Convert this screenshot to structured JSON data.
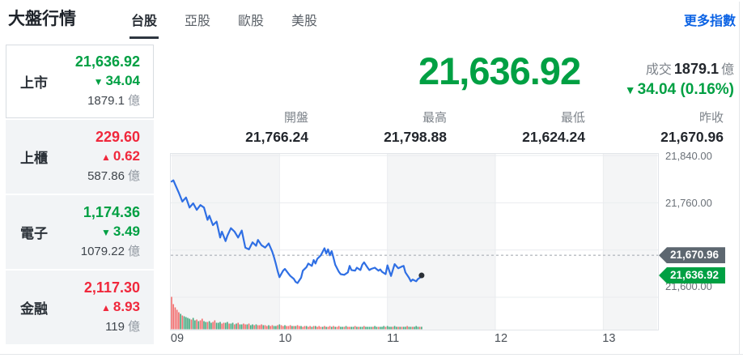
{
  "header": {
    "title": "大盤行情",
    "tabs": [
      {
        "label": "台股",
        "active": true
      },
      {
        "label": "亞股",
        "active": false
      },
      {
        "label": "歐股",
        "active": false
      },
      {
        "label": "美股",
        "active": false
      }
    ],
    "more_link": "更多指數"
  },
  "sidebar": {
    "items": [
      {
        "label": "上市",
        "price": "21,636.92",
        "arrow": "▼",
        "change": "34.04",
        "direction": "down",
        "volume": "1879.1",
        "unit": "億"
      },
      {
        "label": "上櫃",
        "price": "229.60",
        "arrow": "▲",
        "change": "0.62",
        "direction": "up",
        "volume": "587.86",
        "unit": "億"
      },
      {
        "label": "電子",
        "price": "1,174.36",
        "arrow": "▼",
        "change": "3.49",
        "direction": "down",
        "volume": "1079.22",
        "unit": "億"
      },
      {
        "label": "金融",
        "price": "2,117.30",
        "arrow": "▲",
        "change": "8.93",
        "direction": "up",
        "volume": "119",
        "unit": "億"
      }
    ]
  },
  "quote": {
    "price": "21,636.92",
    "direction": "down",
    "volume_label": "成交",
    "volume": "1879.1",
    "volume_unit": "億",
    "arrow": "▼",
    "change": "34.04 (0.16%)"
  },
  "stats": [
    {
      "label": "開盤",
      "value": "21,766.24"
    },
    {
      "label": "最高",
      "value": "21,798.88"
    },
    {
      "label": "最低",
      "value": "21,624.24"
    },
    {
      "label": "昨收",
      "value": "21,670.96"
    }
  ],
  "chart_data": {
    "type": "line",
    "x_axis": {
      "labels": [
        "09",
        "10",
        "11",
        "12",
        "13"
      ],
      "tick_minutes": [
        0,
        60,
        120,
        180,
        240
      ],
      "session_minutes": 270
    },
    "y_axis": {
      "tick_labels": [
        "21,840.00",
        "21,760.00",
        "21,600.00"
      ],
      "tick_values": [
        21840,
        21760,
        21600
      ],
      "gridline_values": [
        21840,
        21760,
        21680,
        21600
      ],
      "top_value": 21840,
      "bottom_value": 21600
    },
    "prev_close": {
      "value": 21670.96,
      "label": "21,670.96"
    },
    "last": {
      "value": 21636.92,
      "label": "21,636.92"
    },
    "gray_band_hours": [
      [
        0,
        60
      ],
      [
        120,
        180
      ],
      [
        240,
        270
      ]
    ],
    "series": [
      [
        0,
        21796
      ],
      [
        1,
        21798
      ],
      [
        2,
        21791
      ],
      [
        4,
        21777
      ],
      [
        6,
        21762
      ],
      [
        8,
        21769
      ],
      [
        10,
        21752
      ],
      [
        12,
        21759
      ],
      [
        14,
        21748
      ],
      [
        16,
        21756
      ],
      [
        18,
        21752
      ],
      [
        20,
        21731
      ],
      [
        21,
        21738
      ],
      [
        23,
        21722
      ],
      [
        25,
        21728
      ],
      [
        27,
        21701
      ],
      [
        28,
        21711
      ],
      [
        30,
        21695
      ],
      [
        31,
        21704
      ],
      [
        33,
        21717
      ],
      [
        35,
        21711
      ],
      [
        37,
        21701
      ],
      [
        39,
        21713
      ],
      [
        41,
        21684
      ],
      [
        43,
        21681
      ],
      [
        45,
        21693
      ],
      [
        47,
        21687
      ],
      [
        48,
        21697
      ],
      [
        50,
        21688
      ],
      [
        52,
        21684
      ],
      [
        54,
        21691
      ],
      [
        56,
        21677
      ],
      [
        57,
        21667
      ],
      [
        58,
        21656
      ],
      [
        59,
        21644
      ],
      [
        60,
        21634
      ],
      [
        62,
        21645
      ],
      [
        63,
        21648
      ],
      [
        65,
        21640
      ],
      [
        66,
        21636
      ],
      [
        68,
        21631
      ],
      [
        69,
        21626
      ],
      [
        70,
        21624
      ],
      [
        72,
        21633
      ],
      [
        73,
        21645
      ],
      [
        75,
        21651
      ],
      [
        76,
        21657
      ],
      [
        78,
        21653
      ],
      [
        79,
        21663
      ],
      [
        80,
        21657
      ],
      [
        81,
        21665
      ],
      [
        83,
        21671
      ],
      [
        85,
        21683
      ],
      [
        86,
        21674
      ],
      [
        87,
        21681
      ],
      [
        88,
        21671
      ],
      [
        89,
        21678
      ],
      [
        90,
        21667
      ],
      [
        91,
        21655
      ],
      [
        93,
        21643
      ],
      [
        94,
        21639
      ],
      [
        96,
        21638
      ],
      [
        98,
        21642
      ],
      [
        99,
        21653
      ],
      [
        100,
        21646
      ],
      [
        102,
        21645
      ],
      [
        103,
        21650
      ],
      [
        105,
        21646
      ],
      [
        106,
        21655
      ],
      [
        107,
        21659
      ],
      [
        109,
        21650
      ],
      [
        110,
        21646
      ],
      [
        111,
        21648
      ],
      [
        113,
        21650
      ],
      [
        115,
        21645
      ],
      [
        116,
        21647
      ],
      [
        117,
        21643
      ],
      [
        119,
        21639
      ],
      [
        120,
        21654
      ],
      [
        122,
        21636
      ],
      [
        124,
        21656
      ],
      [
        126,
        21649
      ],
      [
        128,
        21652
      ],
      [
        129,
        21653
      ],
      [
        130,
        21642
      ],
      [
        132,
        21633
      ],
      [
        133,
        21627
      ],
      [
        134,
        21630
      ],
      [
        136,
        21627
      ],
      [
        137,
        21631
      ],
      [
        138,
        21633
      ],
      [
        139,
        21636.92
      ]
    ],
    "volume_heights": [
      40,
      31,
      27,
      24,
      21,
      19,
      17,
      16,
      15,
      14,
      13,
      12,
      14,
      11,
      12,
      10,
      11,
      13,
      10,
      9,
      9,
      10,
      8,
      9,
      11,
      8,
      8,
      9,
      7,
      8,
      8,
      9,
      7,
      7,
      8,
      6,
      7,
      8,
      6,
      6,
      7,
      6,
      6,
      7,
      5,
      6,
      5,
      6,
      5,
      5,
      6,
      5,
      5,
      4,
      5,
      4,
      5,
      4,
      4,
      5,
      6,
      5,
      4,
      5,
      4,
      4,
      5,
      4,
      4,
      4,
      5,
      4,
      4,
      3,
      4,
      4,
      3,
      4,
      3,
      4,
      4,
      3,
      4,
      3,
      3,
      4,
      3,
      3,
      4,
      3,
      4,
      3,
      3,
      4,
      3,
      3,
      3,
      4,
      3,
      3,
      3,
      3,
      4,
      3,
      3,
      3,
      3,
      4,
      3,
      3,
      3,
      3,
      3,
      4,
      3,
      3,
      3,
      3,
      4,
      3,
      4,
      3,
      3,
      3,
      4,
      3,
      3,
      3,
      3,
      3,
      3,
      4,
      3,
      3,
      3,
      3,
      4,
      3,
      3,
      3
    ],
    "volume_colors": "rrrrrgrggggrggrgrrggrggrrgggrrggrggrgrggrrgrggrgrrrgrrgrrggrgrrgrrrgrgrrgrrgrrgrgrrrgrgrrgrgrrggrgrrggrgrggrggggrggrgggrgggrggrgrggrggrgggrgr",
    "colors": {
      "line": "#2f6fe4",
      "grid": "#eaecef",
      "band": "#f4f5f6",
      "border": "#e2e5e9",
      "dashed": "#b7bbc1",
      "vol_up": "#f26d6d",
      "vol_down": "#43a87e",
      "dot": "#2b3036",
      "badge_prev": "#5d6770",
      "badge_last": "#00a043",
      "up": "#f0283c",
      "down": "#00a043"
    }
  }
}
